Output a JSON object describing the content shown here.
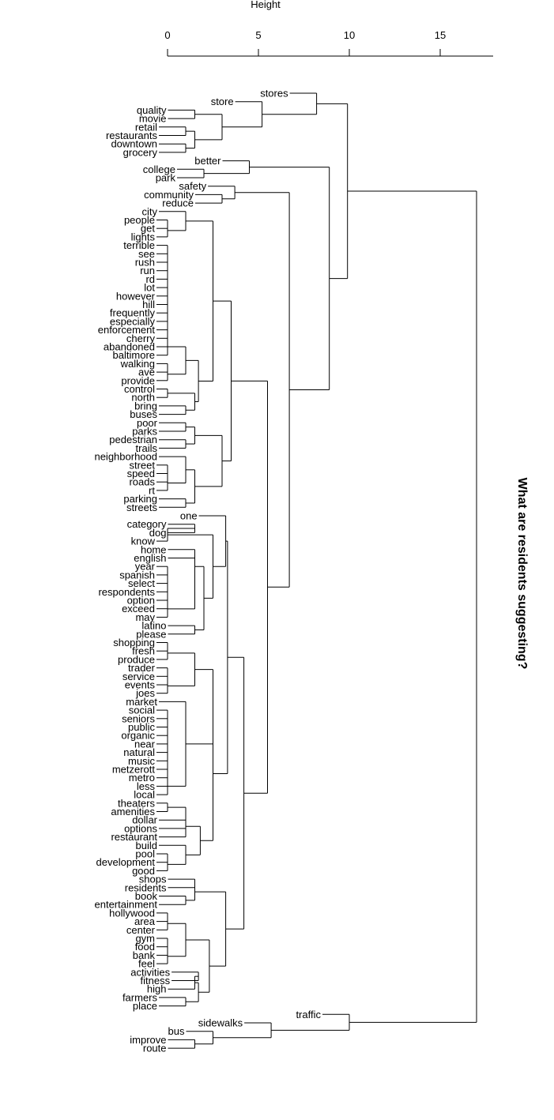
{
  "chart_data": {
    "type": "dendrogram",
    "title": "What are residents suggesting?",
    "axis": {
      "label": "Height",
      "range": [
        0,
        18
      ],
      "ticks": [
        0,
        5,
        10,
        15
      ]
    },
    "leaves": [
      "stores",
      "store",
      "quality",
      "movie",
      "retail",
      "restaurants",
      "downtown",
      "grocery",
      "better",
      "college",
      "park",
      "safety",
      "community",
      "reduce",
      "city",
      "people",
      "get",
      "lights",
      "terrible",
      "see",
      "rush",
      "run",
      "rd",
      "lot",
      "however",
      "hill",
      "frequently",
      "especially",
      "enforcement",
      "cherry",
      "abandoned",
      "baltimore",
      "walking",
      "ave",
      "provide",
      "control",
      "north",
      "bring",
      "buses",
      "poor",
      "parks",
      "pedestrian",
      "trails",
      "neighborhood",
      "street",
      "speed",
      "roads",
      "rt",
      "parking",
      "streets",
      "one",
      "category",
      "dog",
      "know",
      "home",
      "english",
      "year",
      "spanish",
      "select",
      "respondents",
      "option",
      "exceed",
      "may",
      "latino",
      "please",
      "shopping",
      "fresh",
      "produce",
      "trader",
      "service",
      "events",
      "joes",
      "market",
      "social",
      "seniors",
      "public",
      "organic",
      "near",
      "natural",
      "music",
      "metzerott",
      "metro",
      "less",
      "local",
      "theaters",
      "amenities",
      "dollar",
      "options",
      "restaurant",
      "build",
      "pool",
      "development",
      "good",
      "shops",
      "residents",
      "book",
      "entertainment",
      "hollywood",
      "area",
      "center",
      "gym",
      "food",
      "bank",
      "feel",
      "activities",
      "fitness",
      "high",
      "farmers",
      "place",
      "traffic",
      "sidewalks",
      "bus",
      "improve",
      "route"
    ],
    "merges": [
      {
        "a": "quality",
        "b": "movie",
        "h": 1.5
      },
      {
        "a": "retail",
        "b": "restaurants",
        "h": 1
      },
      {
        "a": "downtown",
        "b": "grocery",
        "h": 1
      },
      {
        "a": "#2",
        "b": "#3",
        "h": 1.5
      },
      {
        "a": "#1",
        "b": "#4",
        "h": 3
      },
      {
        "a": "store",
        "b": "#5",
        "h": 5.2
      },
      {
        "a": "stores",
        "b": "#6",
        "h": 8.2
      },
      {
        "a": "college",
        "b": "park",
        "h": 2
      },
      {
        "a": "better",
        "b": "#8",
        "h": 4.5
      },
      {
        "a": "community",
        "b": "reduce",
        "h": 3
      },
      {
        "a": "safety",
        "b": "#10",
        "h": 3.7
      },
      {
        "a": "people",
        "b": "get",
        "h": 0
      },
      {
        "a": "#12",
        "b": "lights",
        "h": 0
      },
      {
        "a": "city",
        "b": "#13",
        "h": 1
      },
      {
        "a": "terrible",
        "b": "see",
        "h": 0
      },
      {
        "a": "#15",
        "b": "rush",
        "h": 0
      },
      {
        "a": "#16",
        "b": "run",
        "h": 0
      },
      {
        "a": "#17",
        "b": "rd",
        "h": 0
      },
      {
        "a": "#18",
        "b": "lot",
        "h": 0
      },
      {
        "a": "#19",
        "b": "however",
        "h": 0
      },
      {
        "a": "#20",
        "b": "hill",
        "h": 0
      },
      {
        "a": "#21",
        "b": "frequently",
        "h": 0
      },
      {
        "a": "#22",
        "b": "especially",
        "h": 0
      },
      {
        "a": "#23",
        "b": "enforcement",
        "h": 0
      },
      {
        "a": "#24",
        "b": "cherry",
        "h": 0
      },
      {
        "a": "#25",
        "b": "abandoned",
        "h": 0
      },
      {
        "a": "#26",
        "b": "baltimore",
        "h": 0
      },
      {
        "a": "walking",
        "b": "ave",
        "h": 0
      },
      {
        "a": "#28",
        "b": "provide",
        "h": 0
      },
      {
        "a": "#27",
        "b": "#29",
        "h": 1
      },
      {
        "a": "control",
        "b": "north",
        "h": 0
      },
      {
        "a": "bring",
        "b": "buses",
        "h": 1
      },
      {
        "a": "#31",
        "b": "#32",
        "h": 1.5
      },
      {
        "a": "#30",
        "b": "#33",
        "h": 1.7
      },
      {
        "a": "#14",
        "b": "#34",
        "h": 2.5
      },
      {
        "a": "poor",
        "b": "parks",
        "h": 1
      },
      {
        "a": "pedestrian",
        "b": "trails",
        "h": 1
      },
      {
        "a": "#36",
        "b": "#37",
        "h": 1.5
      },
      {
        "a": "street",
        "b": "speed",
        "h": 0
      },
      {
        "a": "#39",
        "b": "roads",
        "h": 0
      },
      {
        "a": "#40",
        "b": "rt",
        "h": 0
      },
      {
        "a": "neighborhood",
        "b": "#41",
        "h": 1
      },
      {
        "a": "parking",
        "b": "streets",
        "h": 1
      },
      {
        "a": "#42",
        "b": "#43",
        "h": 1.5
      },
      {
        "a": "#38",
        "b": "#44",
        "h": 3
      },
      {
        "a": "#35",
        "b": "#45",
        "h": 3.5
      },
      {
        "a": "category",
        "b": "dog",
        "h": 1.5
      },
      {
        "a": "#47",
        "b": "know",
        "h": 0
      },
      {
        "a": "year",
        "b": "spanish",
        "h": 0
      },
      {
        "a": "#49",
        "b": "select",
        "h": 0
      },
      {
        "a": "#50",
        "b": "respondents",
        "h": 0
      },
      {
        "a": "#51",
        "b": "option",
        "h": 0
      },
      {
        "a": "#52",
        "b": "exceed",
        "h": 0
      },
      {
        "a": "#53",
        "b": "may",
        "h": 0
      },
      {
        "a": "english",
        "b": "#54",
        "h": 1.5
      },
      {
        "a": "home",
        "b": "#55",
        "h": 1.5
      },
      {
        "a": "latino",
        "b": "please",
        "h": 1.5
      },
      {
        "a": "#56",
        "b": "#57",
        "h": 2
      },
      {
        "a": "#48",
        "b": "#58",
        "h": 2.5
      },
      {
        "a": "one",
        "b": "#59",
        "h": 3.2
      },
      {
        "a": "shopping",
        "b": "fresh",
        "h": 0
      },
      {
        "a": "#61",
        "b": "produce",
        "h": 0
      },
      {
        "a": "trader",
        "b": "service",
        "h": 0
      },
      {
        "a": "#63",
        "b": "events",
        "h": 0
      },
      {
        "a": "#64",
        "b": "joes",
        "h": 0
      },
      {
        "a": "#62",
        "b": "#65",
        "h": 1.5
      },
      {
        "a": "social",
        "b": "seniors",
        "h": 0
      },
      {
        "a": "#67",
        "b": "public",
        "h": 0
      },
      {
        "a": "#68",
        "b": "organic",
        "h": 0
      },
      {
        "a": "#69",
        "b": "near",
        "h": 0
      },
      {
        "a": "#70",
        "b": "natural",
        "h": 0
      },
      {
        "a": "#71",
        "b": "music",
        "h": 0
      },
      {
        "a": "#72",
        "b": "metzerott",
        "h": 0
      },
      {
        "a": "#73",
        "b": "metro",
        "h": 0
      },
      {
        "a": "#74",
        "b": "less",
        "h": 0
      },
      {
        "a": "#75",
        "b": "local",
        "h": 0
      },
      {
        "a": "market",
        "b": "#76",
        "h": 1
      },
      {
        "a": "#66",
        "b": "#77",
        "h": 2.5
      },
      {
        "a": "theaters",
        "b": "amenities",
        "h": 0
      },
      {
        "a": "dollar",
        "b": "options",
        "h": 1
      },
      {
        "a": "#79",
        "b": "#80",
        "h": 1
      },
      {
        "a": "#81",
        "b": "restaurant",
        "h": 1
      },
      {
        "a": "pool",
        "b": "development",
        "h": 0
      },
      {
        "a": "#83",
        "b": "good",
        "h": 0
      },
      {
        "a": "build",
        "b": "#84",
        "h": 1
      },
      {
        "a": "#82",
        "b": "#85",
        "h": 1.8
      },
      {
        "a": "#78",
        "b": "#86",
        "h": 2.5
      },
      {
        "a": "#60",
        "b": "#87",
        "h": 3.3
      },
      {
        "a": "shops",
        "b": "residents",
        "h": 1.5
      },
      {
        "a": "book",
        "b": "entertainment",
        "h": 1
      },
      {
        "a": "#89",
        "b": "#90",
        "h": 1.5
      },
      {
        "a": "hollywood",
        "b": "area",
        "h": 0
      },
      {
        "a": "#92",
        "b": "center",
        "h": 0
      },
      {
        "a": "gym",
        "b": "food",
        "h": 0
      },
      {
        "a": "#94",
        "b": "bank",
        "h": 0
      },
      {
        "a": "#95",
        "b": "feel",
        "h": 0
      },
      {
        "a": "#93",
        "b": "#96",
        "h": 1
      },
      {
        "a": "activities",
        "b": "fitness",
        "h": 1.7
      },
      {
        "a": "high",
        "b": "#98",
        "h": 1.5
      },
      {
        "a": "farmers",
        "b": "place",
        "h": 1
      },
      {
        "a": "#99",
        "b": "#100",
        "h": 1.7
      },
      {
        "a": "#97",
        "b": "#101",
        "h": 2.3
      },
      {
        "a": "#91",
        "b": "#102",
        "h": 3.2
      },
      {
        "a": "#88",
        "b": "#103",
        "h": 4.2
      },
      {
        "a": "#46",
        "b": "#104",
        "h": 5.5
      },
      {
        "a": "#11",
        "b": "#105",
        "h": 6.7
      },
      {
        "a": "#9",
        "b": "#106",
        "h": 8.9
      },
      {
        "a": "#7",
        "b": "#107",
        "h": 9.9
      },
      {
        "a": "improve",
        "b": "route",
        "h": 1.5
      },
      {
        "a": "bus",
        "b": "#109",
        "h": 2.5
      },
      {
        "a": "sidewalks",
        "b": "#110",
        "h": 5.7
      },
      {
        "a": "traffic",
        "b": "#111",
        "h": 10
      },
      {
        "a": "#108",
        "b": "#112",
        "h": 17
      }
    ]
  }
}
